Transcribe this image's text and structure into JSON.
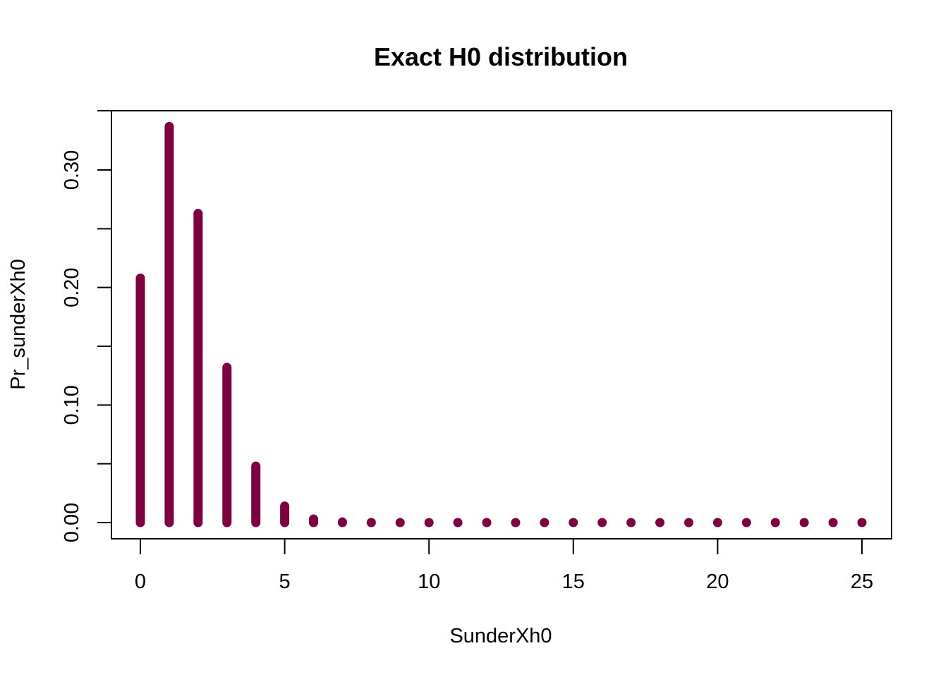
{
  "chart_data": {
    "type": "bar",
    "title": "Exact H0 distribution",
    "xlabel": "SunderXh0",
    "ylabel": "Pr_sunderXh0",
    "x": [
      0,
      1,
      2,
      3,
      4,
      5,
      6,
      7,
      8,
      9,
      10,
      11,
      12,
      13,
      14,
      15,
      16,
      17,
      18,
      19,
      20,
      21,
      22,
      23,
      24,
      25
    ],
    "values": [
      0.208,
      0.337,
      0.263,
      0.132,
      0.048,
      0.014,
      0.003,
      0.0005,
      0.0001,
      0,
      0,
      0,
      0,
      0,
      0,
      0,
      0,
      0,
      0,
      0,
      0,
      0,
      0,
      0,
      0,
      0
    ],
    "xlim": [
      -1,
      26
    ],
    "ylim": [
      0,
      0.35
    ],
    "x_ticks": [
      0,
      5,
      10,
      15,
      20,
      25
    ],
    "x_tick_labels": [
      "0",
      "5",
      "10",
      "15",
      "20",
      "25"
    ],
    "y_ticks": [
      0,
      0.05,
      0.1,
      0.15,
      0.2,
      0.25,
      0.3
    ],
    "y_tick_labels": [
      "0.00",
      "",
      "0.10",
      "",
      "0.20",
      "",
      "0.30"
    ],
    "grid": false,
    "legend": "none",
    "color": "#7f0040"
  }
}
